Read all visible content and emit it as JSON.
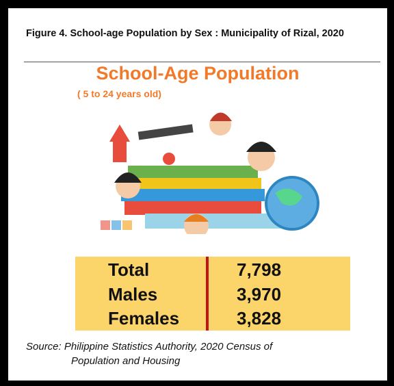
{
  "caption": "Figure 4. School-age Population by Sex : Municipality of Rizal, 2020",
  "title": "School-Age Population",
  "subtitle": "( 5 to 24 years old)",
  "table": {
    "rows": [
      [
        "Total",
        "7,798"
      ],
      [
        "Males",
        "3,970"
      ],
      [
        "Females",
        "3,828"
      ]
    ]
  },
  "source": {
    "line1": "Source: Philippine Statistics Authority, 2020 Census of",
    "line2": "Population and Housing"
  }
}
